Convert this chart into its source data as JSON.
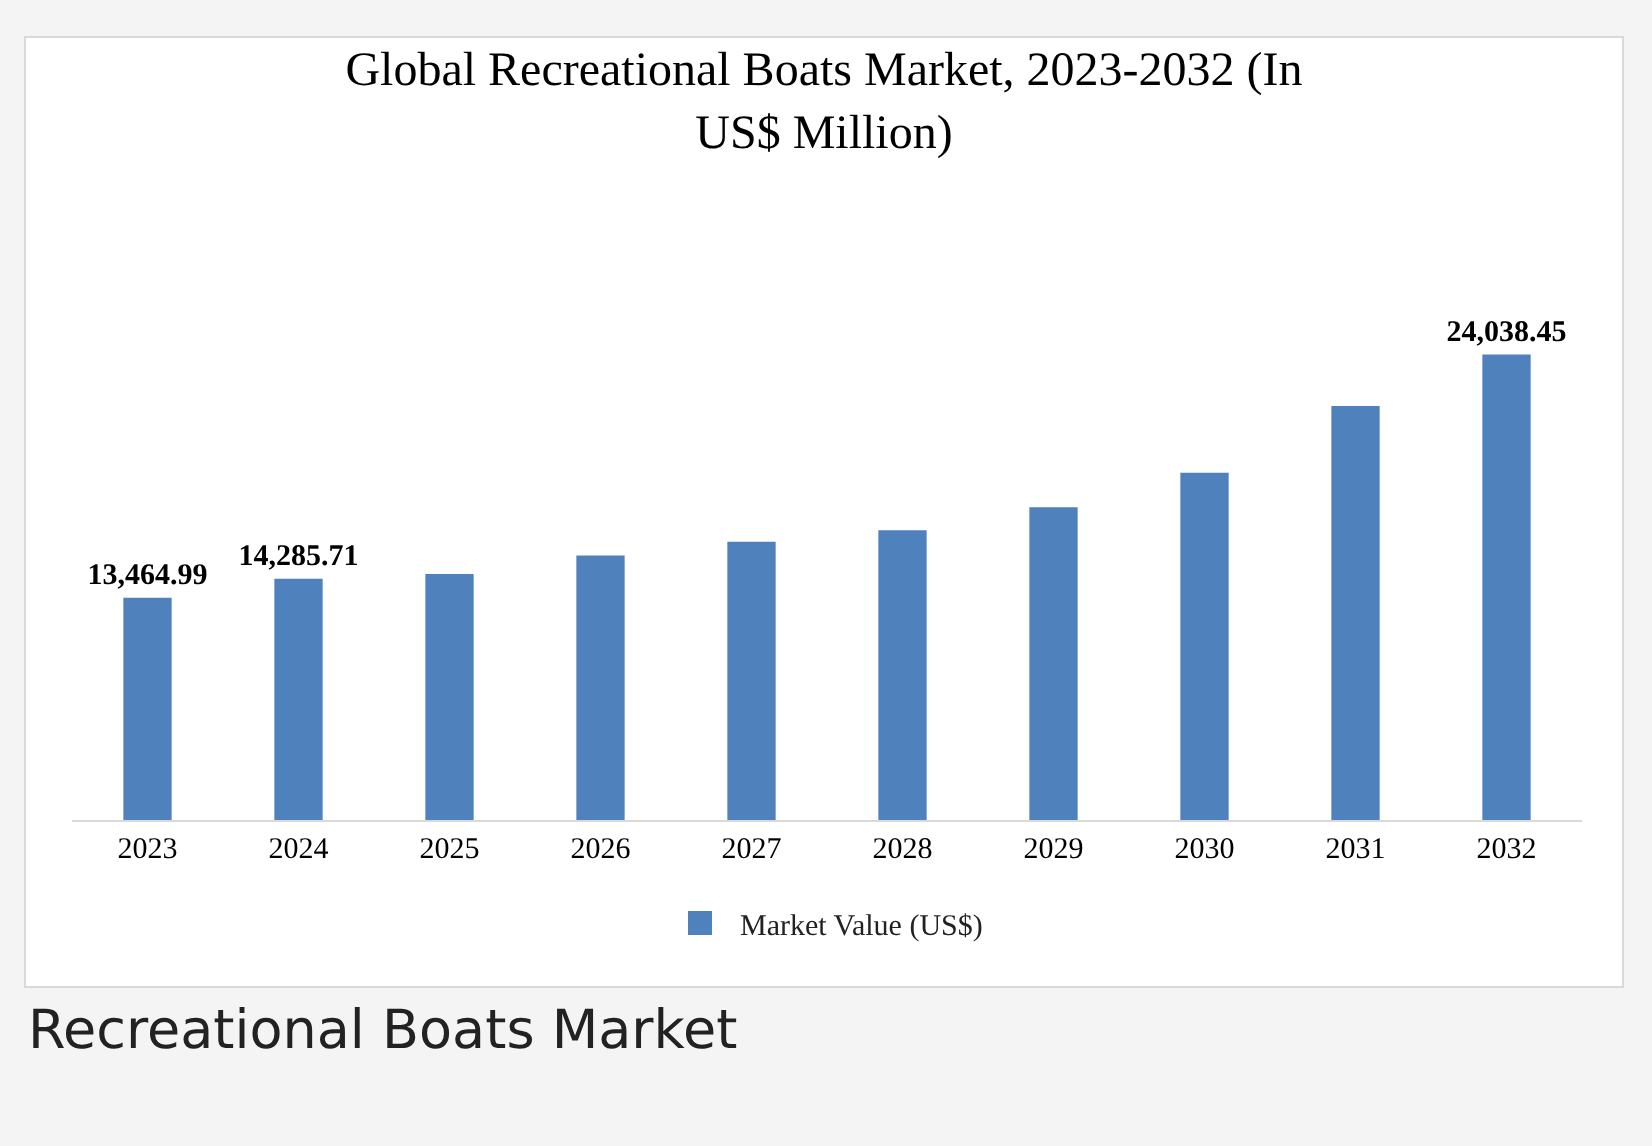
{
  "chart_data": {
    "type": "bar",
    "title": "Global Recreational Boats Market, 2023-2032 (In US$ Million)",
    "categories": [
      "2023",
      "2024",
      "2025",
      "2026",
      "2027",
      "2028",
      "2029",
      "2030",
      "2031",
      "2032"
    ],
    "series": [
      {
        "name": "Market Value (US$)",
        "color": "#4f81bd",
        "values": [
          13464.99,
          14285.71,
          14500,
          15300,
          15900,
          16400,
          17400,
          18900,
          21800,
          24038.45
        ],
        "value_labels": [
          "13,464.99",
          "14,285.71",
          null,
          null,
          null,
          null,
          null,
          null,
          null,
          "24,038.45"
        ]
      }
    ],
    "ylim": [
      3800,
      37800
    ],
    "grid": false,
    "legend": "bottom",
    "tick_labels": "x",
    "annotations": [
      "Recreational Boats Market"
    ]
  }
}
